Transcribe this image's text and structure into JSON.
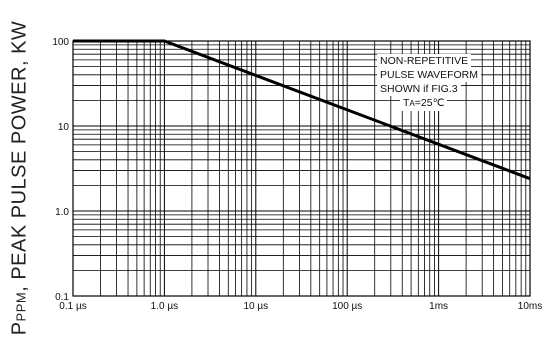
{
  "chart_data": {
    "type": "line",
    "title": "",
    "xlabel": "",
    "ylabel": {
      "lead": "P",
      "subscript": "PPM",
      "rest": ", PEAK PULSE POWER, KW"
    },
    "x_scale": "log",
    "y_scale": "log",
    "xlim": [
      "0.1µs",
      "10ms"
    ],
    "ylim": [
      0.1,
      100
    ],
    "x_ticks": [
      "0.1 µs",
      "1.0 µs",
      "10 µs",
      "100 µs",
      "1ms",
      "10ms"
    ],
    "y_ticks": [
      "100",
      "10",
      "1.0",
      "0.1"
    ],
    "grid": "on (log minor gridlines)",
    "series": [
      {
        "x": [
          "0.1µs",
          "1.0µs",
          "10ms"
        ],
        "y": [
          100,
          100,
          2.4
        ]
      }
    ],
    "annotation": {
      "lines": [
        "NON-REPETITIVE",
        "PULSE WAVEFORM",
        "SHOWN if FIG.3"
      ],
      "temp_lead": "T",
      "temp_sub": "A",
      "temp_rest": "=25℃"
    }
  }
}
